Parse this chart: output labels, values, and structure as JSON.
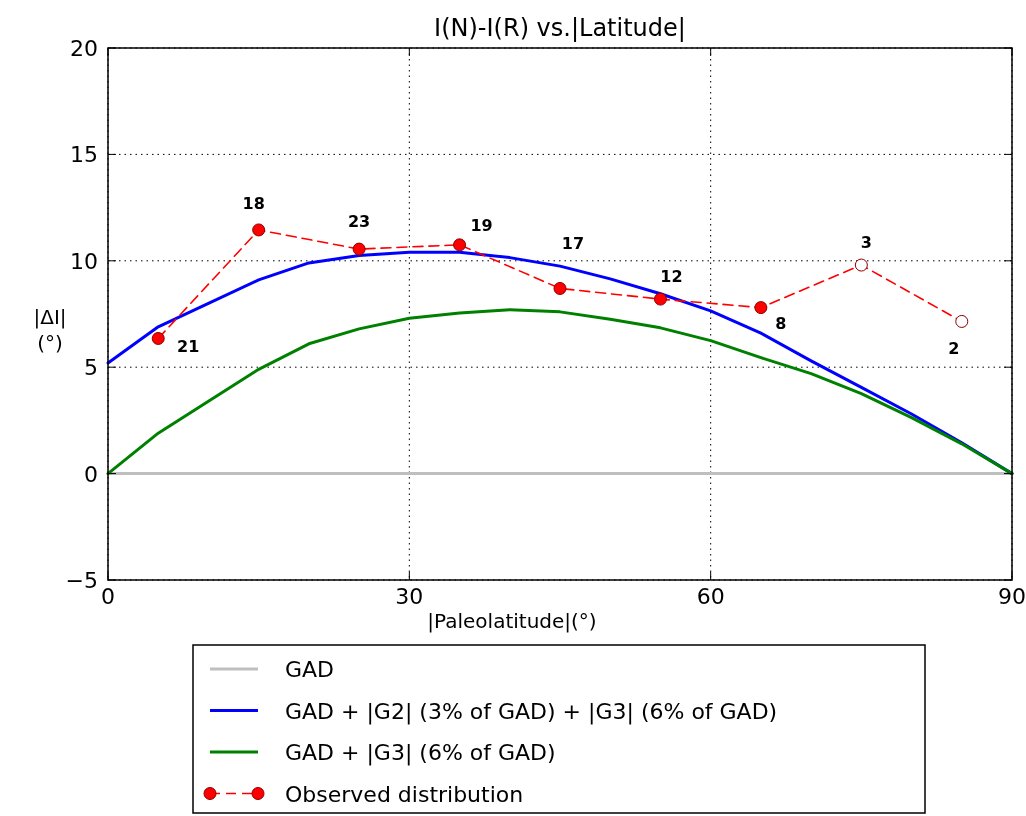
{
  "chart_data": {
    "type": "line",
    "title": "I(N)-I(R) vs.|Latitude|",
    "xlabel": "|Paleolatitude|(°)",
    "ylabel": "|ΔI|\n(°)",
    "xlim": [
      0,
      90
    ],
    "xticks": [
      0,
      30,
      60,
      90
    ],
    "ylim": [
      -5,
      20
    ],
    "yticks": [
      {
        "value": -5,
        "label": "−5"
      },
      0,
      5,
      10,
      15,
      20
    ],
    "grid": true,
    "legend": "bottom",
    "series": [
      {
        "name": "GAD",
        "color": "#bfbfbf",
        "x": [
          0,
          90
        ],
        "values": [
          0,
          0
        ],
        "marker": "none",
        "line_style": "solid"
      },
      {
        "name": "GAD + |G2| (3% of GAD) + |G3| (6% of GAD)",
        "color": "#0000ff",
        "x": [
          0,
          5,
          10,
          15,
          20,
          25,
          30,
          35,
          40,
          45,
          50,
          55,
          60,
          65,
          70,
          75,
          80,
          85,
          90
        ],
        "values": [
          5.2,
          6.9,
          8.0,
          9.1,
          9.9,
          10.25,
          10.4,
          10.4,
          10.15,
          9.75,
          9.15,
          8.45,
          7.65,
          6.6,
          5.3,
          4.05,
          2.8,
          1.45,
          0
        ],
        "marker": "none",
        "line_style": "solid"
      },
      {
        "name": "GAD + |G3| (6% of GAD)",
        "color": "#008000",
        "x": [
          0,
          5,
          10,
          15,
          20,
          25,
          30,
          35,
          40,
          45,
          50,
          55,
          60,
          65,
          70,
          75,
          80,
          85,
          90
        ],
        "values": [
          0,
          1.9,
          3.4,
          4.9,
          6.1,
          6.8,
          7.3,
          7.55,
          7.7,
          7.6,
          7.25,
          6.85,
          6.25,
          5.45,
          4.7,
          3.76,
          2.63,
          1.4,
          0
        ],
        "marker": "none",
        "line_style": "solid"
      },
      {
        "name": "Observed distribution",
        "color": "#ff0000",
        "x": [
          5,
          15,
          25,
          35,
          45,
          55,
          65,
          75,
          85
        ],
        "values": [
          6.35,
          11.45,
          10.55,
          10.75,
          8.7,
          8.2,
          7.8,
          9.8,
          7.15
        ],
        "colors": [
          "#ff0000",
          "#ff0000",
          "#ff0000",
          "#ff0000",
          "#ff0000",
          "#ff0000",
          "#ff0000",
          "#ffffff",
          "#ffffff"
        ],
        "marker": "circle",
        "line_style": "dashed"
      }
    ],
    "annotations": [
      {
        "text": "21",
        "x": 5,
        "y": 6.35
      },
      {
        "text": "18",
        "x": 15,
        "y": 11.45
      },
      {
        "text": "23",
        "x": 25,
        "y": 10.55
      },
      {
        "text": "19",
        "x": 35,
        "y": 10.75
      },
      {
        "text": "17",
        "x": 45,
        "y": 8.7
      },
      {
        "text": "12",
        "x": 55,
        "y": 8.2
      },
      {
        "text": "8",
        "x": 65,
        "y": 7.8
      },
      {
        "text": "3",
        "x": 75,
        "y": 9.8
      },
      {
        "text": "2",
        "x": 85,
        "y": 7.15
      }
    ]
  }
}
